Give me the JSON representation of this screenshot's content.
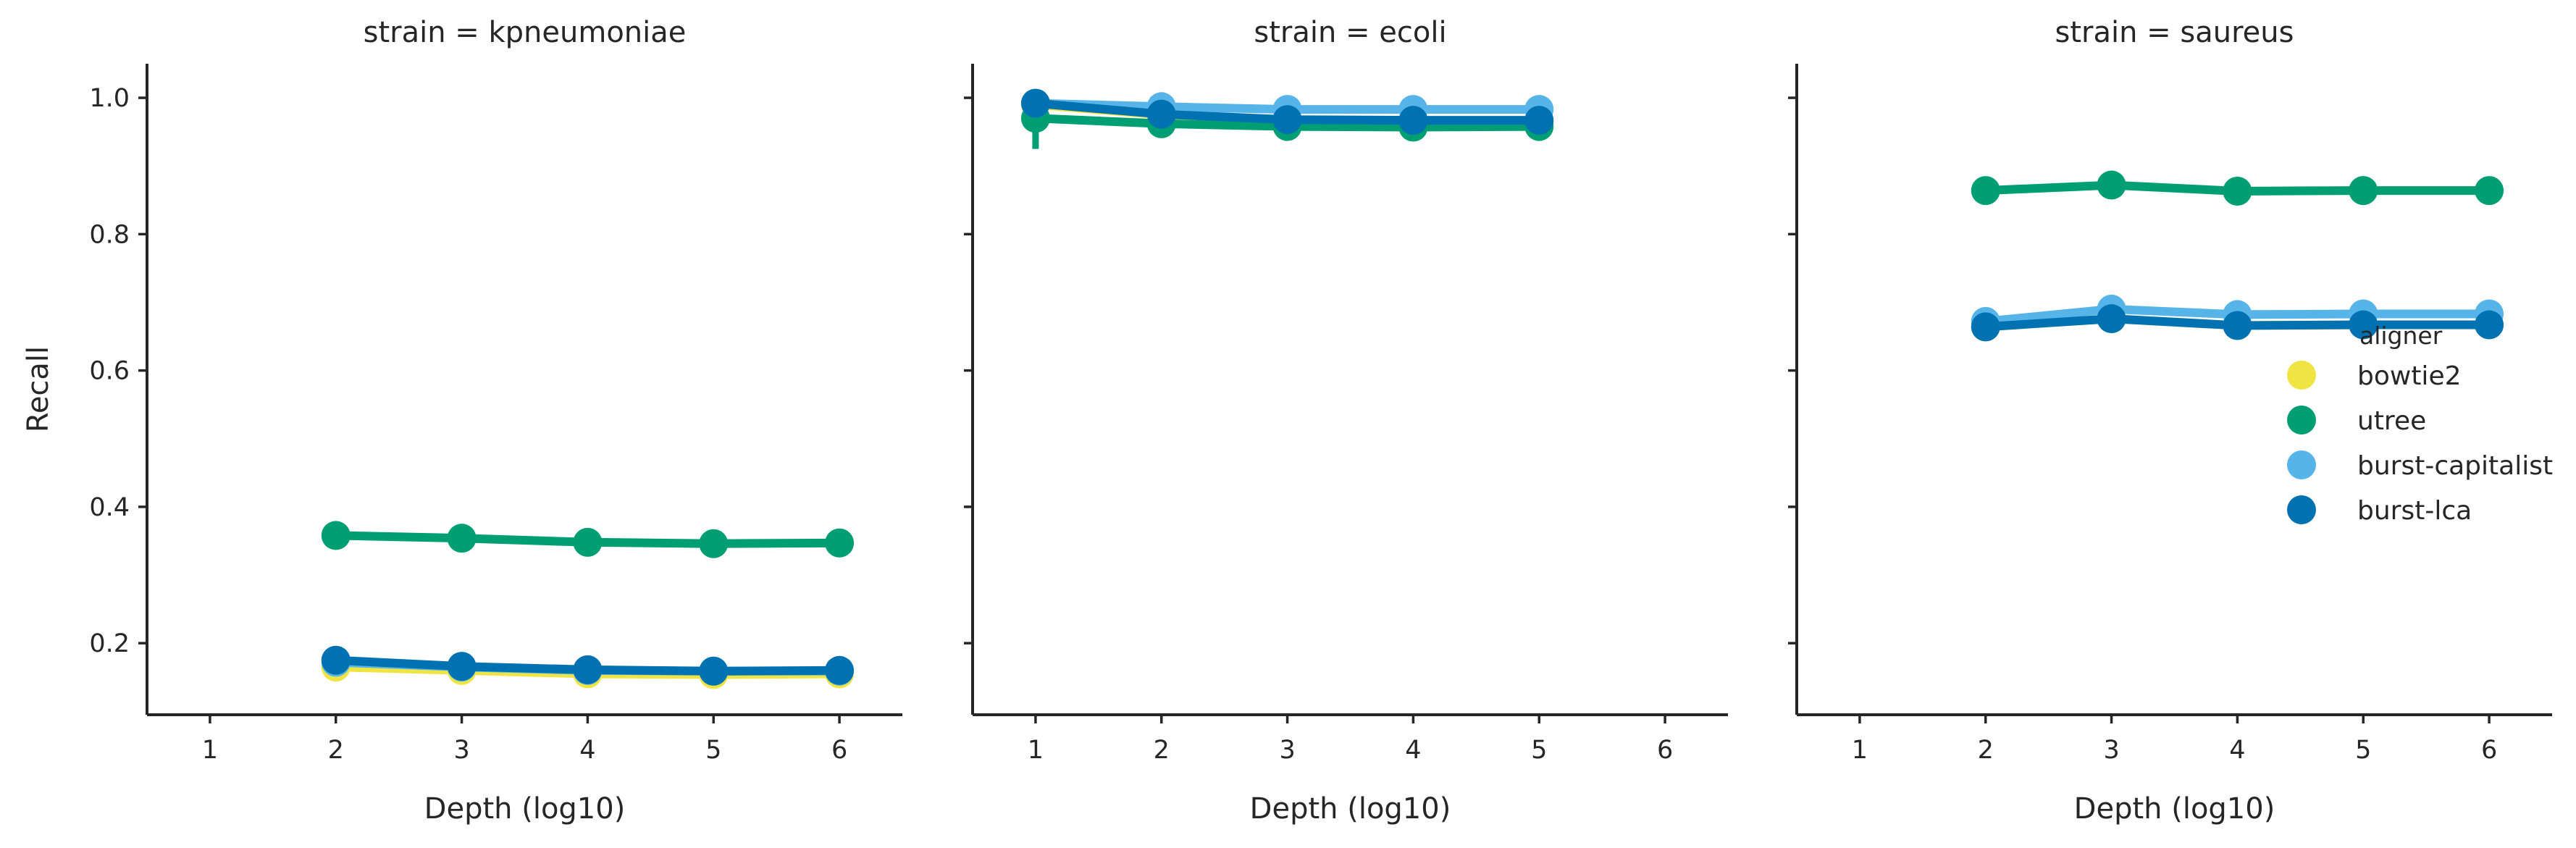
{
  "chart_data": [
    {
      "type": "line",
      "title": "strain = kpneumoniae",
      "xlabel": "Depth (log10)",
      "ylabel": "Recall",
      "x_categories": [
        1,
        2,
        3,
        4,
        5,
        6
      ],
      "yticks": [
        0.2,
        0.4,
        0.6,
        0.8,
        1.0
      ],
      "ylim": [
        0.095,
        1.05
      ],
      "series": [
        {
          "name": "bowtie2",
          "color": "#F0E442",
          "x": [
            2,
            3,
            4,
            5,
            6
          ],
          "y": [
            0.165,
            0.16,
            0.155,
            0.154,
            0.155
          ]
        },
        {
          "name": "utree",
          "color": "#009E73",
          "x": [
            2,
            3,
            4,
            5,
            6
          ],
          "y": [
            0.358,
            0.354,
            0.348,
            0.346,
            0.347
          ]
        },
        {
          "name": "burst-capitalist",
          "color": "#56B4E9",
          "x": [
            2,
            3,
            4,
            5,
            6
          ],
          "y": [
            0.172,
            0.165,
            0.16,
            0.159,
            0.159
          ]
        },
        {
          "name": "burst-lca",
          "color": "#0072B2",
          "x": [
            2,
            3,
            4,
            5,
            6
          ],
          "y": [
            0.175,
            0.166,
            0.161,
            0.159,
            0.16
          ]
        }
      ]
    },
    {
      "type": "line",
      "title": "strain = ecoli",
      "xlabel": "Depth (log10)",
      "ylabel": "",
      "x_categories": [
        1,
        2,
        3,
        4,
        5,
        6
      ],
      "yticks": [
        0.2,
        0.4,
        0.6,
        0.8,
        1.0
      ],
      "ylim": [
        0.095,
        1.05
      ],
      "series": [
        {
          "name": "bowtie2",
          "color": "#F0E442",
          "x": [
            1,
            2,
            3,
            4,
            5
          ],
          "y": [
            0.99,
            0.975,
            0.965,
            0.965,
            0.965
          ]
        },
        {
          "name": "utree",
          "color": "#009E73",
          "x": [
            1,
            2,
            3,
            4,
            5
          ],
          "y": [
            0.97,
            0.962,
            0.958,
            0.957,
            0.958
          ],
          "error": [
            [
              1,
              0.925,
              0.985
            ]
          ]
        },
        {
          "name": "burst-capitalist",
          "color": "#56B4E9",
          "x": [
            1,
            2,
            3,
            4,
            5
          ],
          "y": [
            0.992,
            0.987,
            0.983,
            0.983,
            0.983
          ]
        },
        {
          "name": "burst-lca",
          "color": "#0072B2",
          "x": [
            1,
            2,
            3,
            4,
            5
          ],
          "y": [
            0.992,
            0.976,
            0.968,
            0.967,
            0.967
          ]
        }
      ]
    },
    {
      "type": "line",
      "title": "strain = saureus",
      "xlabel": "Depth (log10)",
      "ylabel": "",
      "x_categories": [
        1,
        2,
        3,
        4,
        5,
        6
      ],
      "yticks": [
        0.2,
        0.4,
        0.6,
        0.8,
        1.0
      ],
      "ylim": [
        0.095,
        1.05
      ],
      "series": [
        {
          "name": "bowtie2",
          "color": "#F0E442",
          "x": [
            2,
            3,
            4,
            5,
            6
          ],
          "y": [
            0.664,
            0.676,
            0.666,
            0.667,
            0.667
          ]
        },
        {
          "name": "utree",
          "color": "#009E73",
          "x": [
            2,
            3,
            4,
            5,
            6
          ],
          "y": [
            0.864,
            0.872,
            0.863,
            0.864,
            0.864
          ],
          "error": [
            [
              2,
              0.855,
              0.872
            ]
          ]
        },
        {
          "name": "burst-capitalist",
          "color": "#56B4E9",
          "x": [
            2,
            3,
            4,
            5,
            6
          ],
          "y": [
            0.672,
            0.69,
            0.682,
            0.683,
            0.683
          ],
          "error": [
            [
              2,
              0.655,
              0.69
            ]
          ]
        },
        {
          "name": "burst-lca",
          "color": "#0072B2",
          "x": [
            2,
            3,
            4,
            5,
            6
          ],
          "y": [
            0.664,
            0.676,
            0.666,
            0.667,
            0.667
          ],
          "error": [
            [
              2,
              0.648,
              0.68
            ]
          ]
        }
      ]
    }
  ],
  "legend": {
    "title": "aligner",
    "placement": "right-middle of last panel",
    "items": [
      {
        "label": "bowtie2",
        "color": "#F0E442"
      },
      {
        "label": "utree",
        "color": "#009E73"
      },
      {
        "label": "burst-capitalist",
        "color": "#56B4E9"
      },
      {
        "label": "burst-lca",
        "color": "#0072B2"
      }
    ]
  }
}
